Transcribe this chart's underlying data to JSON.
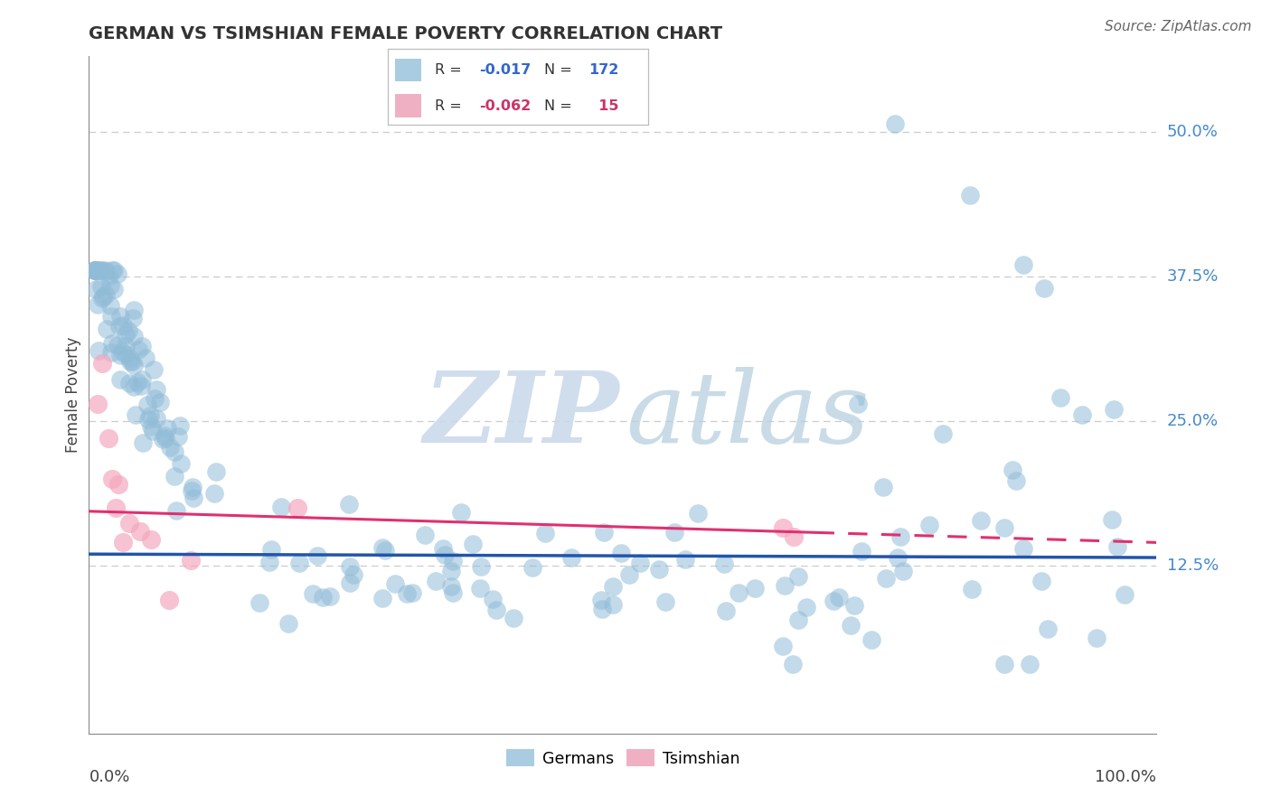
{
  "title": "GERMAN VS TSIMSHIAN FEMALE POVERTY CORRELATION CHART",
  "source": "Source: ZipAtlas.com",
  "ylabel": "Female Poverty",
  "ytick_labels": [
    "12.5%",
    "25.0%",
    "37.5%",
    "50.0%"
  ],
  "ytick_values": [
    0.125,
    0.25,
    0.375,
    0.5
  ],
  "xlim": [
    0.0,
    1.0
  ],
  "ylim": [
    -0.02,
    0.565
  ],
  "german_color": "#90bcd8",
  "tsimshian_color": "#f4a8be",
  "german_line_color": "#2255aa",
  "tsimshian_line_color": "#e03070",
  "watermark_zip_color": "#c8d8ea",
  "watermark_atlas_color": "#b8cfe0",
  "background_color": "#ffffff",
  "grid_color": "#cccccc",
  "title_color": "#333333",
  "source_color": "#666666",
  "right_label_color": "#4488cc",
  "legend_r_color_german": "#3366cc",
  "legend_r_color_tsimshian": "#cc3366",
  "legend_n_color_german": "#3366cc",
  "legend_n_color_tsimshian": "#cc3366"
}
